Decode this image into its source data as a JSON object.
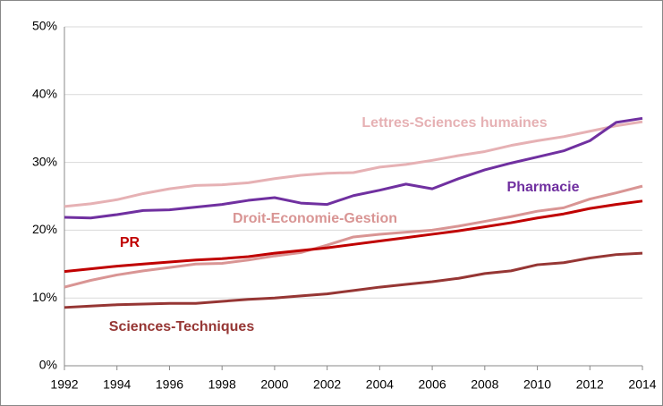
{
  "chart_data": {
    "type": "line",
    "x": [
      1992,
      1993,
      1994,
      1995,
      1996,
      1997,
      1998,
      1999,
      2000,
      2001,
      2002,
      2003,
      2004,
      2005,
      2006,
      2007,
      2008,
      2009,
      2010,
      2011,
      2012,
      2013,
      2014
    ],
    "xlim": [
      1992,
      2014
    ],
    "xticks": [
      1992,
      1994,
      1996,
      1998,
      2000,
      2002,
      2004,
      2006,
      2008,
      2010,
      2012,
      2014
    ],
    "ylim": [
      0,
      50
    ],
    "yticks": [
      {
        "value": 0,
        "label": "0%"
      },
      {
        "value": 10,
        "label": "10%"
      },
      {
        "value": 20,
        "label": "20%"
      },
      {
        "value": 30,
        "label": "30%"
      },
      {
        "value": 40,
        "label": "40%"
      },
      {
        "value": 50,
        "label": "50%"
      }
    ],
    "grid": true,
    "series": [
      {
        "name": "Lettres-Sciences humaines",
        "color": "#e6b1b4",
        "values": [
          23.5,
          23.9,
          24.5,
          25.4,
          26.1,
          26.6,
          26.7,
          27.0,
          27.6,
          28.1,
          28.4,
          28.5,
          29.3,
          29.7,
          30.3,
          31.0,
          31.6,
          32.5,
          33.2,
          33.8,
          34.6,
          35.4,
          36.0
        ]
      },
      {
        "name": "Pharmacie",
        "color": "#7030a0",
        "values": [
          21.9,
          21.8,
          22.3,
          22.9,
          23.0,
          23.4,
          23.8,
          24.4,
          24.8,
          24.0,
          23.8,
          25.1,
          25.9,
          26.8,
          26.1,
          27.6,
          28.9,
          29.9,
          30.8,
          31.7,
          33.2,
          35.9,
          36.5
        ]
      },
      {
        "name": "Droit-Economie-Gestion",
        "color": "#d99594",
        "values": [
          11.6,
          12.6,
          13.4,
          14.0,
          14.5,
          15.0,
          15.1,
          15.6,
          16.2,
          16.7,
          17.8,
          19.0,
          19.4,
          19.7,
          20.0,
          20.6,
          21.3,
          22.0,
          22.8,
          23.3,
          24.6,
          25.5,
          26.5
        ]
      },
      {
        "name": "PR",
        "color": "#c00000",
        "values": [
          13.9,
          14.3,
          14.7,
          15.0,
          15.3,
          15.6,
          15.8,
          16.1,
          16.6,
          17.0,
          17.4,
          17.9,
          18.4,
          18.9,
          19.4,
          19.9,
          20.5,
          21.1,
          21.8,
          22.4,
          23.2,
          23.8,
          24.3
        ]
      },
      {
        "name": "Sciences-Techniques",
        "color": "#963634",
        "values": [
          8.6,
          8.8,
          9.0,
          9.1,
          9.2,
          9.2,
          9.5,
          9.8,
          10.0,
          10.3,
          10.6,
          11.1,
          11.6,
          12.0,
          12.4,
          12.9,
          13.6,
          14.0,
          14.9,
          15.2,
          15.9,
          16.4,
          16.6
        ]
      }
    ]
  }
}
